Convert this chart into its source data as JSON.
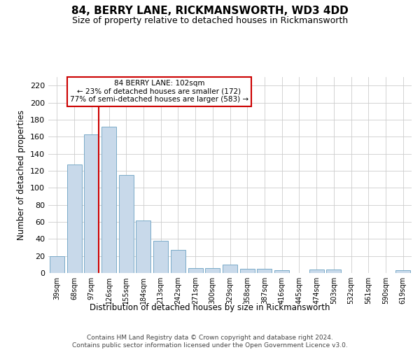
{
  "title1": "84, BERRY LANE, RICKMANSWORTH, WD3 4DD",
  "title2": "Size of property relative to detached houses in Rickmansworth",
  "xlabel": "Distribution of detached houses by size in Rickmansworth",
  "ylabel": "Number of detached properties",
  "categories": [
    "39sqm",
    "68sqm",
    "97sqm",
    "126sqm",
    "155sqm",
    "184sqm",
    "213sqm",
    "242sqm",
    "271sqm",
    "300sqm",
    "329sqm",
    "358sqm",
    "387sqm",
    "416sqm",
    "445sqm",
    "474sqm",
    "503sqm",
    "532sqm",
    "561sqm",
    "590sqm",
    "619sqm"
  ],
  "values": [
    20,
    127,
    163,
    172,
    115,
    62,
    38,
    27,
    6,
    6,
    10,
    5,
    5,
    3,
    0,
    4,
    4,
    0,
    0,
    0,
    3
  ],
  "bar_color": "#c8d9ea",
  "bar_edge_color": "#7aaac8",
  "vline_color": "#cc0000",
  "vline_x": 2.4,
  "annotation_text": "84 BERRY LANE: 102sqm\n← 23% of detached houses are smaller (172)\n77% of semi-detached houses are larger (583) →",
  "ann_box_fc": "#ffffff",
  "ann_box_ec": "#cc0000",
  "grid_color": "#cccccc",
  "footnote": "Contains HM Land Registry data © Crown copyright and database right 2024.\nContains public sector information licensed under the Open Government Licence v3.0.",
  "ylim": [
    0,
    230
  ],
  "yticks": [
    0,
    20,
    40,
    60,
    80,
    100,
    120,
    140,
    160,
    180,
    200,
    220
  ],
  "fig_w": 6.0,
  "fig_h": 5.0,
  "dpi": 100
}
